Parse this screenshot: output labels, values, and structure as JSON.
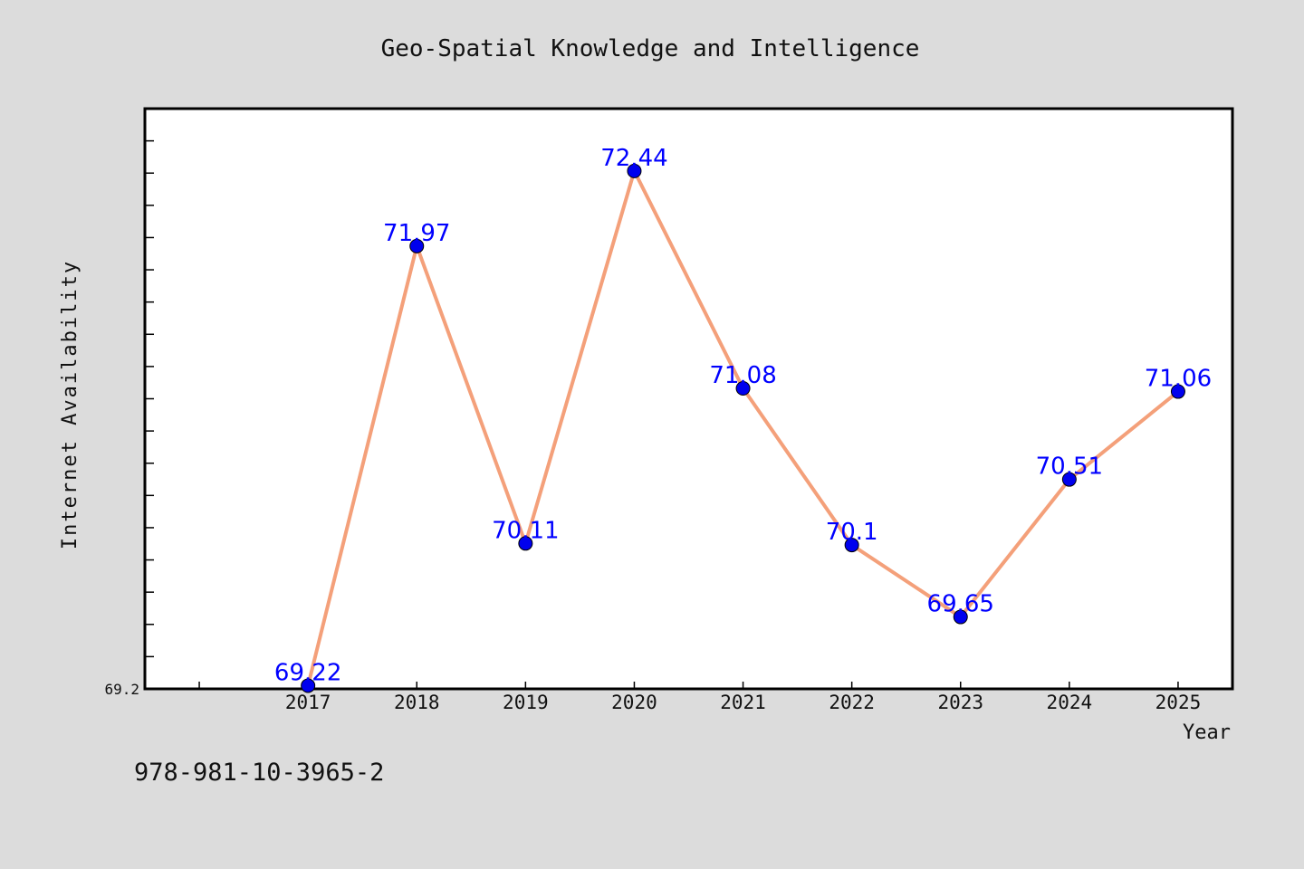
{
  "chart_data": {
    "type": "line",
    "title": "Geo-Spatial Knowledge and Intelligence",
    "xlabel": "Year",
    "ylabel": "Internet Availability",
    "categories": [
      "2017",
      "2018",
      "2019",
      "2020",
      "2021",
      "2022",
      "2023",
      "2024",
      "2025"
    ],
    "series": [
      {
        "values": [
          69.22,
          71.97,
          70.11,
          72.44,
          71.08,
          70.1,
          69.65,
          70.51,
          71.06
        ],
        "labels": [
          "69.22",
          "71.97",
          "70.11",
          "72.44",
          "71.08",
          "70.1",
          "69.65",
          "70.51",
          "71.06"
        ],
        "line_color": "#f4a07a",
        "marker_color": "#0000ee",
        "label_color": "#0000ff"
      }
    ],
    "ylim": [
      69.2,
      72.83
    ],
    "xlim": [
      2015.5,
      2025.5
    ],
    "ytick_labels": [
      "69.2"
    ],
    "grid": false,
    "legend": "none"
  },
  "footer": {
    "isbn": "978-981-10-3965-2"
  },
  "colors": {
    "background": "#dcdcdc",
    "plot_background": "#ffffff",
    "axis": "#000000"
  }
}
